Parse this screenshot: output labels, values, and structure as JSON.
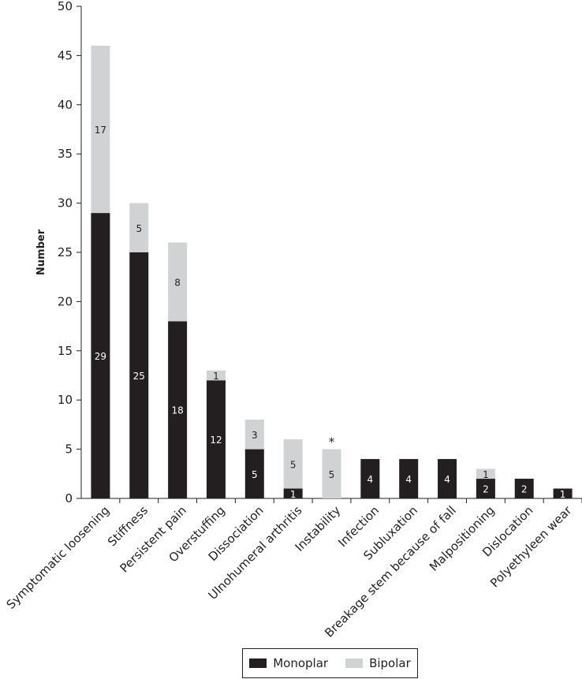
{
  "chart_data": {
    "type": "bar",
    "stacked": true,
    "ylabel": "Number",
    "xlabel": "",
    "ylim": [
      0,
      50
    ],
    "yticks": [
      "0",
      "5",
      "10",
      "15",
      "20",
      "25",
      "30",
      "35",
      "40",
      "45",
      "50"
    ],
    "categories": [
      "Symptomatic loosening",
      "Stiffness",
      "Persistent pain",
      "Overstuffing",
      "Dissociation",
      "Ulnohumeral arthritis",
      "Instability",
      "Infection",
      "Subluxation",
      "Breakage stem because of fall",
      "Malpositioning",
      "Dislocation",
      "Polyethyleen wear"
    ],
    "series": [
      {
        "name": "Monoplar",
        "color": "#231f20",
        "values": [
          29,
          25,
          18,
          12,
          5,
          1,
          0,
          4,
          4,
          4,
          2,
          2,
          1
        ]
      },
      {
        "name": "Bipolar",
        "color": "#d1d2d4",
        "values": [
          17,
          5,
          8,
          1,
          3,
          5,
          5,
          0,
          0,
          0,
          1,
          0,
          0
        ]
      }
    ],
    "data_labels": [
      [
        "29",
        "17"
      ],
      [
        "25",
        "5"
      ],
      [
        "18",
        "8"
      ],
      [
        "12",
        "1"
      ],
      [
        "5",
        "3"
      ],
      [
        "1",
        "5"
      ],
      [
        "",
        "5"
      ],
      [
        "4",
        ""
      ],
      [
        "4",
        ""
      ],
      [
        "4",
        ""
      ],
      [
        "2",
        "1"
      ],
      [
        "2",
        ""
      ],
      [
        "1",
        ""
      ]
    ],
    "annotations": [
      {
        "category": "Instability",
        "text": "*"
      }
    ],
    "legend_position": "bottom-center"
  }
}
